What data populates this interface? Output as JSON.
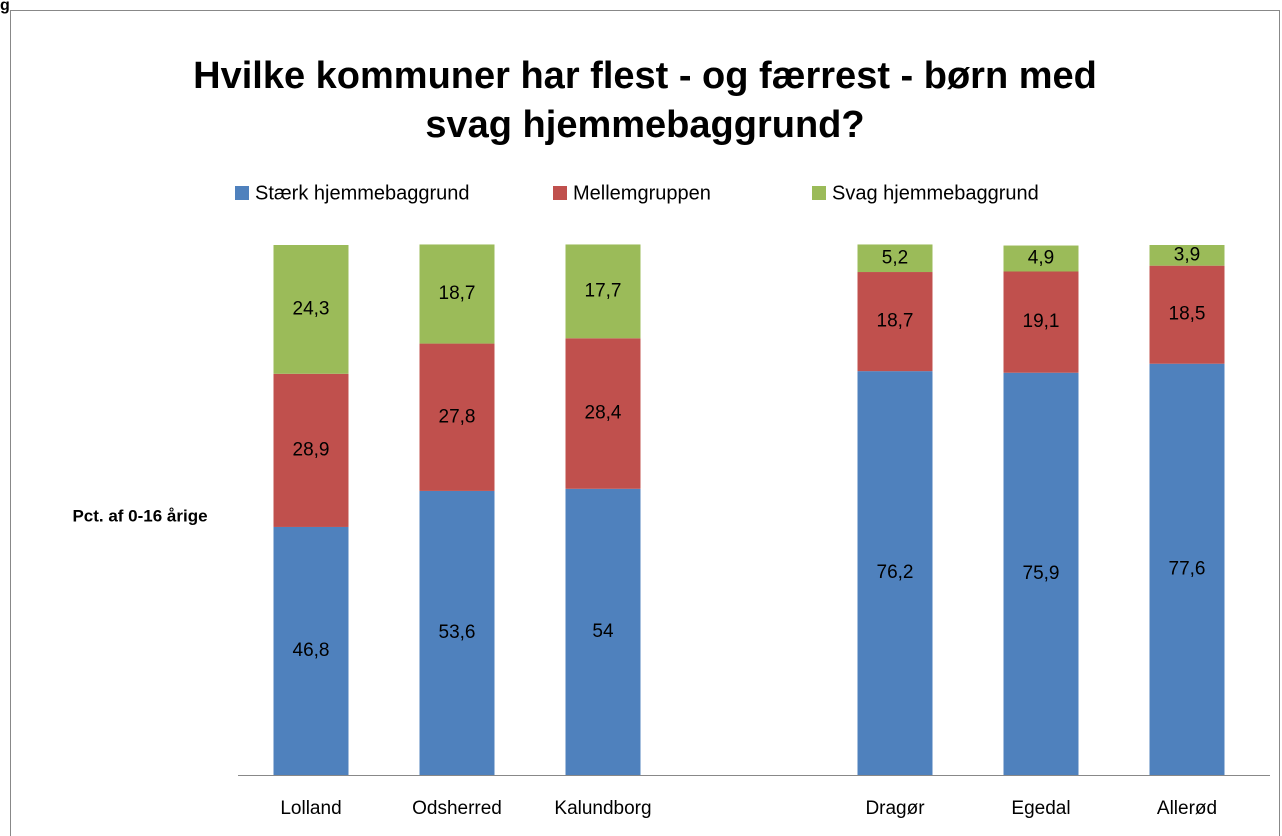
{
  "fragment": "g",
  "chart_data": {
    "type": "stacked_bar",
    "title": [
      "Hvilke kommuner har flest - og færrest - børn med",
      "svag hjemmebaggrund?"
    ],
    "ylabel": "Pct. af 0-16 årige",
    "categories": [
      "Lolland",
      "Odsherred",
      "Kalundborg",
      null,
      "Dragør",
      "Egedal",
      "Allerød"
    ],
    "ylim": [
      0,
      100
    ],
    "series": [
      {
        "name": "Stærk hjemmebaggrund",
        "color": "#4f81bd",
        "values": [
          46.8,
          53.6,
          54,
          null,
          76.2,
          75.9,
          77.6
        ],
        "value_labels": [
          "46,8",
          "53,6",
          "54",
          null,
          "76,2",
          "75,9",
          "77,6"
        ]
      },
      {
        "name": "Mellemgruppen",
        "color": "#c0504d",
        "values": [
          28.9,
          27.8,
          28.4,
          null,
          18.7,
          19.1,
          18.5
        ],
        "value_labels": [
          "28,9",
          "27,8",
          "28,4",
          null,
          "18,7",
          "19,1",
          "18,5"
        ]
      },
      {
        "name": "Svag hjemmebaggrund",
        "color": "#9bbb59",
        "values": [
          24.3,
          18.7,
          17.7,
          null,
          5.2,
          4.9,
          3.9
        ],
        "value_labels": [
          "24,3",
          "18,7",
          "17,7",
          null,
          "5,2",
          "4,9",
          "3,9"
        ]
      }
    ]
  }
}
